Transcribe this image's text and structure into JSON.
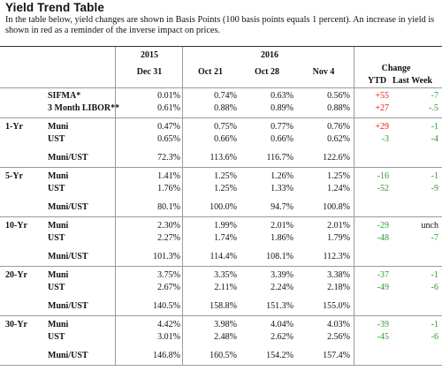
{
  "title": "Yield Trend Table",
  "intro": "In the table below, yield changes are shown in Basis Points (100 basis points equals 1 percent). An increase in yield is shown in red as a reminder of the inverse impact on prices.",
  "header": {
    "year_2015": "2015",
    "year_2016": "2016",
    "dec31": "Dec 31",
    "oct21": "Oct 21",
    "oct28": "Oct 28",
    "nov4": "Nov 4",
    "change": "Change",
    "ytd": "YTD",
    "last_week": "Last Week"
  },
  "top_rows": [
    {
      "label": "SIFMA*",
      "dec31": "0.01%",
      "oct21": "0.74%",
      "oct28": "0.63%",
      "nov4": "0.56%",
      "ytd": "+55",
      "last_week": "-7"
    },
    {
      "label": "3 Month LIBOR**",
      "dec31": "0.61%",
      "oct21": "0.88%",
      "oct28": "0.89%",
      "nov4": "0.88%",
      "ytd": "+27",
      "last_week": "-.5"
    }
  ],
  "groups": [
    {
      "tenor": "1-Yr",
      "muni": {
        "label": "Muni",
        "dec31": "0.47%",
        "oct21": "0.75%",
        "oct28": "0.77%",
        "nov4": "0.76%",
        "ytd": "+29",
        "last_week": "-1"
      },
      "ust": {
        "label": "UST",
        "dec31": "0.65%",
        "oct21": "0.66%",
        "oct28": "0.66%",
        "nov4": "0.62%",
        "ytd": "-3",
        "last_week": "-4"
      },
      "ratio": {
        "label": "Muni/UST",
        "dec31": "72.3%",
        "oct21": "113.6%",
        "oct28": "116.7%",
        "nov4": "122.6%"
      }
    },
    {
      "tenor": "5-Yr",
      "muni": {
        "label": "Muni",
        "dec31": "1.41%",
        "oct21": "1.25%",
        "oct28": "1.26%",
        "nov4": "1.25%",
        "ytd": "-16",
        "last_week": "-1"
      },
      "ust": {
        "label": "UST",
        "dec31": "1.76%",
        "oct21": "1.25%",
        "oct28": "1.33%",
        "nov4": "1.24%",
        "ytd": "-52",
        "last_week": "-9"
      },
      "ratio": {
        "label": "Muni/UST",
        "dec31": "80.1%",
        "oct21": "100.0%",
        "oct28": "94.7%",
        "nov4": "100.8%"
      }
    },
    {
      "tenor": "10-Yr",
      "muni": {
        "label": "Muni",
        "dec31": "2.30%",
        "oct21": "1.99%",
        "oct28": "2.01%",
        "nov4": "2.01%",
        "ytd": "-29",
        "last_week": "unch"
      },
      "ust": {
        "label": "UST",
        "dec31": "2.27%",
        "oct21": "1.74%",
        "oct28": "1.86%",
        "nov4": "1.79%",
        "ytd": "-48",
        "last_week": "-7"
      },
      "ratio": {
        "label": "Muni/UST",
        "dec31": "101.3%",
        "oct21": "114.4%",
        "oct28": "108.1%",
        "nov4": "112.3%"
      }
    },
    {
      "tenor": "20-Yr",
      "muni": {
        "label": "Muni",
        "dec31": "3.75%",
        "oct21": "3.35%",
        "oct28": "3.39%",
        "nov4": "3.38%",
        "ytd": "-37",
        "last_week": "-1"
      },
      "ust": {
        "label": "UST",
        "dec31": "2.67%",
        "oct21": "2.11%",
        "oct28": "2.24%",
        "nov4": "2.18%",
        "ytd": "-49",
        "last_week": "-6"
      },
      "ratio": {
        "label": "Muni/UST",
        "dec31": "140.5%",
        "oct21": "158.8%",
        "oct28": "151.3%",
        "nov4": "155.0%"
      }
    },
    {
      "tenor": "30-Yr",
      "muni": {
        "label": "Muni",
        "dec31": "4.42%",
        "oct21": "3.98%",
        "oct28": "4.04%",
        "nov4": "4.03%",
        "ytd": "-39",
        "last_week": "-1"
      },
      "ust": {
        "label": "UST",
        "dec31": "3.01%",
        "oct21": "2.48%",
        "oct28": "2.62%",
        "nov4": "2.56%",
        "ytd": "-45",
        "last_week": "-6"
      },
      "ratio": {
        "label": "Muni/UST",
        "dec31": "146.8%",
        "oct21": "160.5%",
        "oct28": "154.2%",
        "nov4": "157.4%"
      }
    }
  ],
  "colors": {
    "increase": "#e0201c",
    "decrease": "#2e9b2e",
    "unchanged": "#111111"
  }
}
